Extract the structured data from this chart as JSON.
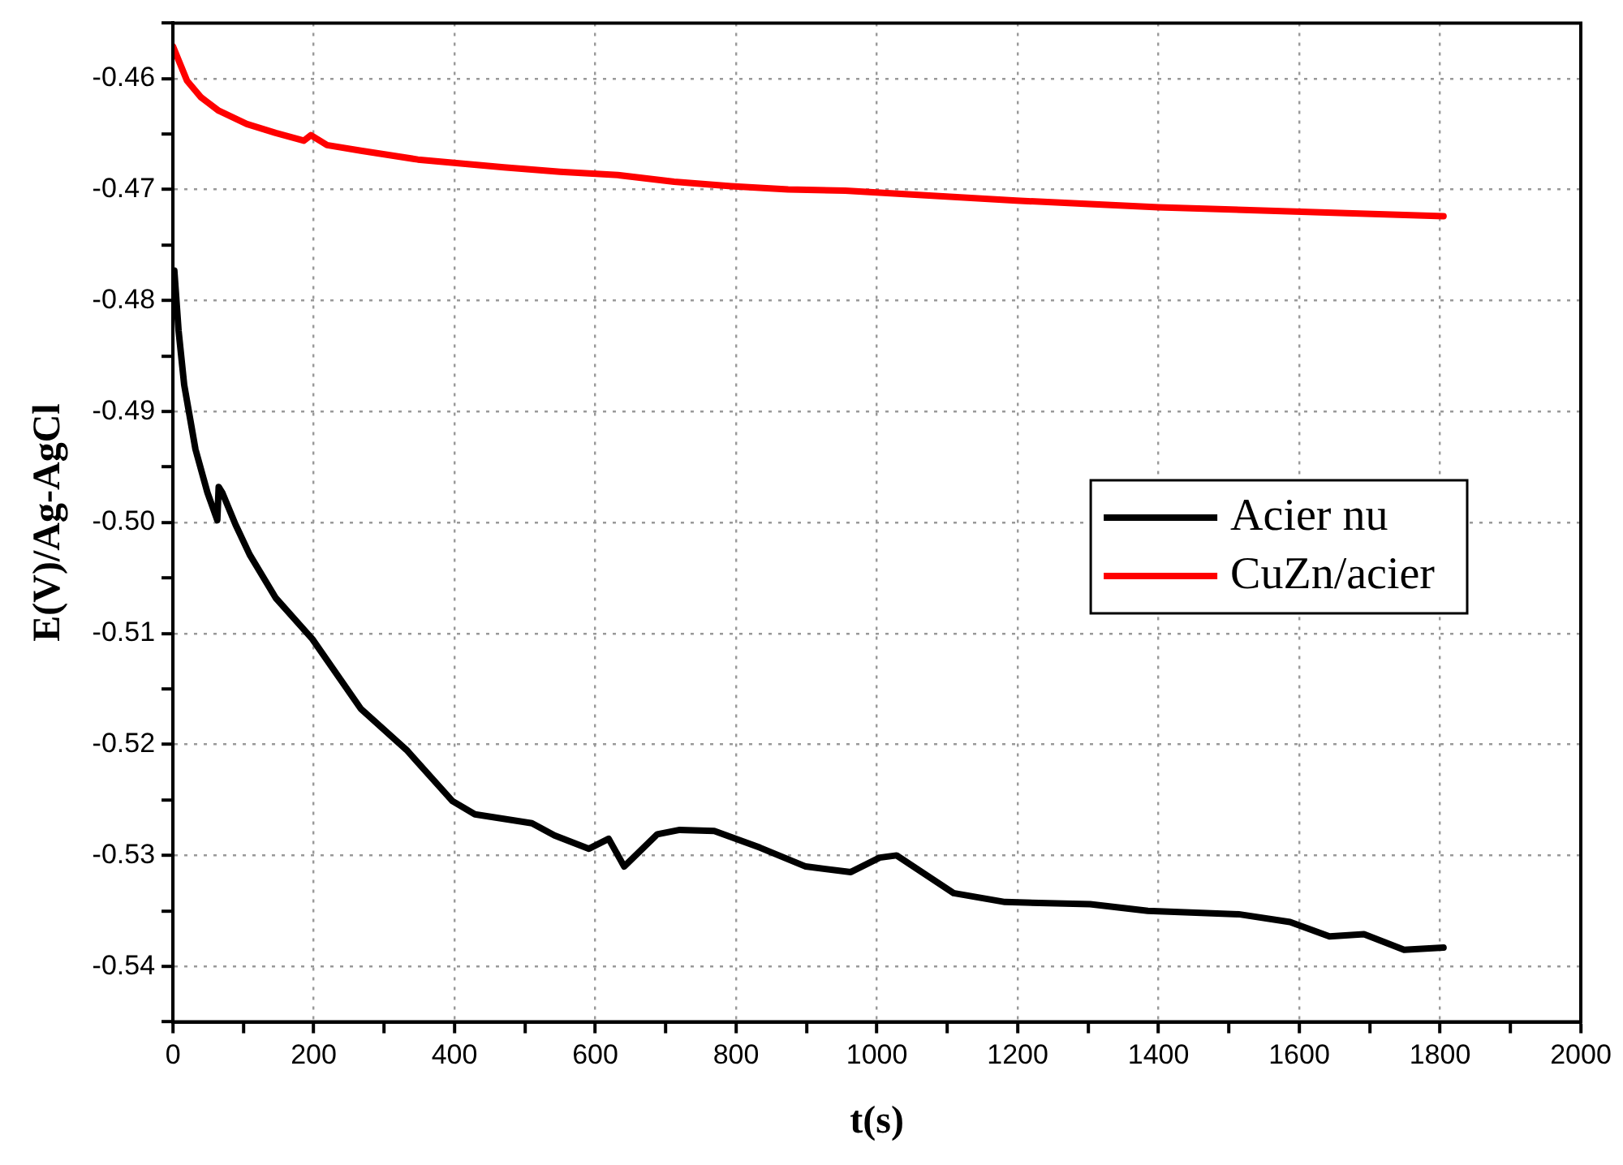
{
  "chart_data": {
    "type": "line",
    "xlabel": "t(s)",
    "ylabel": "E(V)/Ag-AgCl",
    "xlim": [
      0,
      2000
    ],
    "ylim": [
      -0.545,
      -0.455
    ],
    "xticks": [
      0,
      {
        "value": 100,
        "label": null
      },
      200,
      {
        "value": 300,
        "label": null
      },
      400,
      {
        "value": 500,
        "label": null
      },
      600,
      {
        "value": 700,
        "label": null
      },
      800,
      {
        "value": 900,
        "label": null
      },
      1000,
      {
        "value": 1100,
        "label": null
      },
      1200,
      {
        "value": 1300,
        "label": null
      },
      1400,
      {
        "value": 1500,
        "label": null
      },
      1600,
      {
        "value": 1700,
        "label": null
      },
      1800,
      {
        "value": 1900,
        "label": null
      },
      2000
    ],
    "yticks": [
      {
        "value": -0.545,
        "label": null
      },
      -0.54,
      {
        "value": -0.535,
        "label": null
      },
      -0.53,
      {
        "value": -0.525,
        "label": null
      },
      -0.52,
      {
        "value": -0.515,
        "label": null
      },
      -0.51,
      {
        "value": -0.505,
        "label": null
      },
      {
        "value": -0.5,
        "label": "-0.50"
      },
      {
        "value": -0.495,
        "label": null
      },
      -0.49,
      {
        "value": -0.485,
        "label": null
      },
      -0.48,
      {
        "value": -0.475,
        "label": null
      },
      -0.47,
      {
        "value": -0.465,
        "label": null
      },
      -0.46,
      {
        "value": -0.455,
        "label": null
      }
    ],
    "grid": true,
    "legend": "right",
    "marker": "none",
    "line_style": "solid",
    "series": [
      {
        "name": "Acier nu",
        "color": "#000000",
        "x": [
          2,
          8,
          16,
          32,
          49,
          63,
          65,
          70,
          89,
          109,
          146,
          198,
          267,
          332,
          397,
          429,
          510,
          542,
          591,
          619,
          641,
          688,
          720,
          769,
          834,
          899,
          963,
          1004,
          1028,
          1109,
          1182,
          1303,
          1385,
          1514,
          1587,
          1643,
          1692,
          1749,
          1805
        ],
        "values": [
          -0.4773,
          -0.4827,
          -0.4876,
          -0.4934,
          -0.4973,
          -0.4998,
          -0.4968,
          -0.4973,
          -0.5002,
          -0.5029,
          -0.5068,
          -0.5105,
          -0.5168,
          -0.5205,
          -0.5251,
          -0.5263,
          -0.5271,
          -0.5282,
          -0.5294,
          -0.5285,
          -0.531,
          -0.5281,
          -0.5277,
          -0.5278,
          -0.5293,
          -0.531,
          -0.5315,
          -0.5302,
          -0.53,
          -0.5334,
          -0.5342,
          -0.5344,
          -0.535,
          -0.5353,
          -0.536,
          -0.5373,
          -0.5371,
          -0.5385,
          -0.5383
        ]
      },
      {
        "name": "CuZn/acier",
        "color": "#ff0000",
        "x": [
          0,
          20,
          40,
          65,
          105,
          146,
          186,
          196,
          219,
          267,
          348,
          470,
          550,
          632,
          712,
          793,
          874,
          955,
          1198,
          1400,
          1603,
          1805
        ],
        "values": [
          -0.4571,
          -0.4602,
          -0.4617,
          -0.4629,
          -0.4641,
          -0.4649,
          -0.4656,
          -0.4651,
          -0.466,
          -0.4665,
          -0.4673,
          -0.468,
          -0.4684,
          -0.4687,
          -0.4693,
          -0.4697,
          -0.47,
          -0.4701,
          -0.471,
          -0.4716,
          -0.472,
          -0.4724
        ]
      }
    ]
  }
}
